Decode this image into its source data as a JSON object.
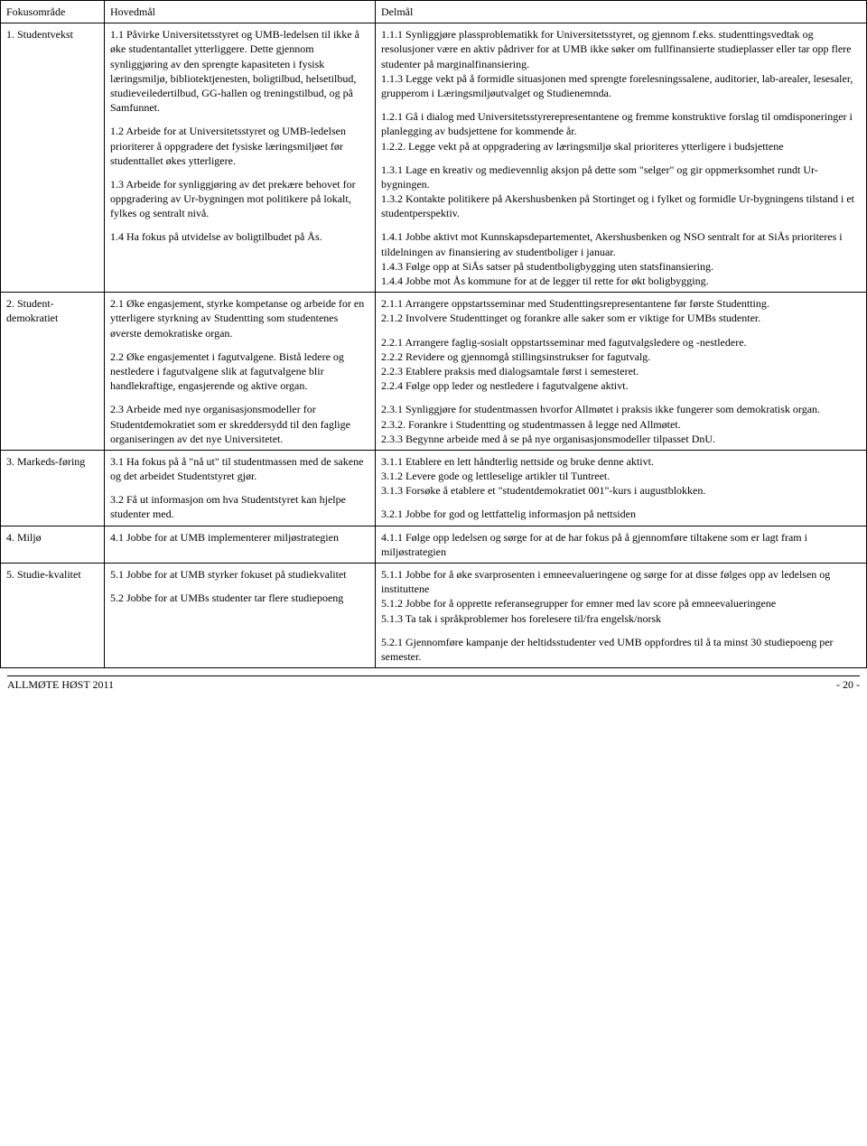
{
  "headers": {
    "c1": "Fokusområde",
    "c2": "Hovedmål",
    "c3": "Delmål"
  },
  "rows": [
    {
      "focus": "1. Studentvekst",
      "hovedmal": [
        "1.1 Påvirke Universitetsstyret og UMB-ledelsen til ikke å øke studentantallet ytterliggere. Dette gjennom synliggjøring av den sprengte kapasiteten i fysisk læringsmiljø, bibliotektjenesten, boligtilbud, helsetilbud, studieveiledertilbud, GG-hallen og treningstilbud, og på Samfunnet.",
        "1.2 Arbeide for at Universitetsstyret og UMB-ledelsen prioriterer å oppgradere det fysiske læringsmiljøet før studenttallet økes ytterligere.",
        "1.3 Arbeide for synliggjøring av det prekære behovet for oppgradering av Ur-bygningen mot politikere på lokalt, fylkes og sentralt nivå.",
        "1.4 Ha fokus på utvidelse av boligtilbudet på Ås."
      ],
      "delmal": [
        "1.1.1 Synliggjøre plassproblematikk for Universitetsstyret, og gjennom f.eks. studenttingsvedtak og resolusjoner være en aktiv pådriver for at UMB ikke søker om fullfinansierte studieplasser eller tar opp flere studenter på marginalfinansiering.\n1.1.3 Legge vekt på å formidle situasjonen med sprengte forelesningssalene, auditorier, lab-arealer, lesesaler, grupperom i Læringsmiljøutvalget og Studienemnda.",
        "1.2.1 Gå i dialog med Universitetsstyrerepresentantene og fremme konstruktive forslag til omdisponeringer i planlegging av budsjettene for kommende år.\n1.2.2.  Legge vekt på at oppgradering av læringsmiljø skal prioriteres ytterligere i budsjettene",
        "1.3.1 Lage en kreativ og medievennlig aksjon på dette som \"selger\" og gir oppmerksomhet rundt Ur-bygningen.\n1.3.2 Kontakte politikere på Akershusbenken på Stortinget og i fylket og formidle Ur-bygningens tilstand i et studentperspektiv.",
        "1.4.1 Jobbe aktivt mot Kunnskapsdepartementet, Akershusbenken og NSO sentralt for at SiÅs prioriteres i tildelningen av finansiering av studentboliger i januar.\n1.4.3 Følge opp at SiÅs satser på studentboligbygging uten statsfinansiering.\n1.4.4 Jobbe mot Ås kommune for at de legger til rette for økt boligbygging."
      ]
    },
    {
      "focus": "2. Student-demokratiet",
      "hovedmal": [
        "2.1 Øke engasjement, styrke kompetanse og arbeide for en ytterligere styrkning av Studentting som studentenes øverste demokratiske organ.",
        "2.2 Øke engasjementet i fagutvalgene. Bistå ledere og nestledere i fagutvalgene slik at fagutvalgene blir handlekraftige, engasjerende og aktive organ.",
        "2.3 Arbeide med nye organisasjonsmodeller for Studentdemokratiet som er skreddersydd til den faglige organiseringen av det nye Universitetet."
      ],
      "delmal": [
        "2.1.1 Arrangere oppstartsseminar med Studenttingsrepresentantene før første Studentting.\n2.1.2 Involvere Studenttinget og forankre alle saker som er viktige for UMBs studenter.",
        "2.2.1 Arrangere faglig-sosialt oppstartsseminar med fagutvalgsledere og -nestledere.\n2.2.2 Revidere og gjennomgå stillingsinstrukser for fagutvalg.\n2.2.3 Etablere praksis med dialogsamtale først i semesteret.\n2.2.4 Følge opp leder og nestledere i fagutvalgene aktivt.",
        "2.3.1 Synliggjøre for studentmassen hvorfor Allmøtet i praksis ikke fungerer som demokratisk organ.\n2.3.2. Forankre i Studentting og studentmassen å legge ned Allmøtet.\n2.3.3 Begynne arbeide med å se på nye organisasjonsmodeller tilpasset DnU."
      ]
    },
    {
      "focus": "3. Markeds-føring",
      "hovedmal": [
        "3.1 Ha fokus på å \"nå ut\" til studentmassen med de sakene og det arbeidet Studentstyret gjør.",
        "3.2 Få ut informasjon om hva Studentstyret kan hjelpe studenter med."
      ],
      "delmal": [
        "3.1.1 Etablere en lett håndterlig nettside og bruke denne aktivt.\n3.1.2 Levere gode og lettleselige artikler til Tuntreet.\n3.1.3 Forsøke å etablere et \"studentdemokratiet 001\"-kurs i augustblokken.",
        "3.2.1 Jobbe for god og lettfattelig informasjon på nettsiden"
      ]
    },
    {
      "focus": "4. Miljø",
      "hovedmal": [
        "4.1 Jobbe for at UMB implementerer miljøstrategien"
      ],
      "delmal": [
        "4.1.1 Følge opp ledelsen og sørge for at de har fokus på å gjennomføre tiltakene som er lagt fram i miljøstrategien"
      ]
    },
    {
      "focus": "5. Studie-kvalitet",
      "hovedmal": [
        "5.1 Jobbe for at UMB styrker fokuset på studiekvalitet",
        "5.2 Jobbe for at UMBs studenter tar flere studiepoeng"
      ],
      "delmal": [
        "5.1.1 Jobbe for å øke svarprosenten i emneevalueringene og sørge for at disse følges opp av ledelsen og instituttene\n5.1.2 Jobbe for å opprette referansegrupper for emner med lav score på emneevalueringene\n5.1.3 Ta tak i språkproblemer hos forelesere til/fra engelsk/norsk",
        "5.2.1 Gjennomføre kampanje der heltidsstudenter ved UMB oppfordres til å ta minst 30 studiepoeng per semester."
      ]
    }
  ],
  "footer": {
    "left": "ALLMØTE HØST 2011",
    "right": "- 20 -"
  }
}
